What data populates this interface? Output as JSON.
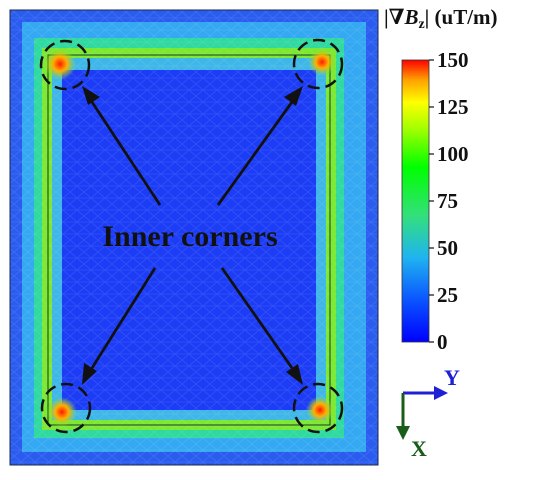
{
  "figure": {
    "annotation_label": "Inner corners",
    "colorbar": {
      "title_prefix": "|∇",
      "title_symbol": "B",
      "title_subscript": "z",
      "title_suffix": "| (uT/m)",
      "ticks": [
        "150",
        "125",
        "100",
        "75",
        "50",
        "25",
        "0"
      ],
      "tick_values": [
        150,
        125,
        100,
        75,
        50,
        25,
        0
      ],
      "range": [
        0,
        150
      ],
      "colors": [
        "#0000ff",
        "#0a55ff",
        "#1fb4f0",
        "#33e07a",
        "#00ff00",
        "#9cff00",
        "#ffff00",
        "#ffa000",
        "#ff0000"
      ]
    },
    "axes": {
      "y_label": "Y",
      "x_label": "X",
      "y_color": "#1f1fd6",
      "x_color": "#1a5c1a"
    },
    "field_colors": {
      "outer_ring": "#2a5cf0",
      "mid_ring": "#34a8f2",
      "inner_band": "#2fd9a0",
      "hot_band": "#7be832",
      "center": "#1c3df5",
      "hotspot": "#ff3a10"
    }
  }
}
